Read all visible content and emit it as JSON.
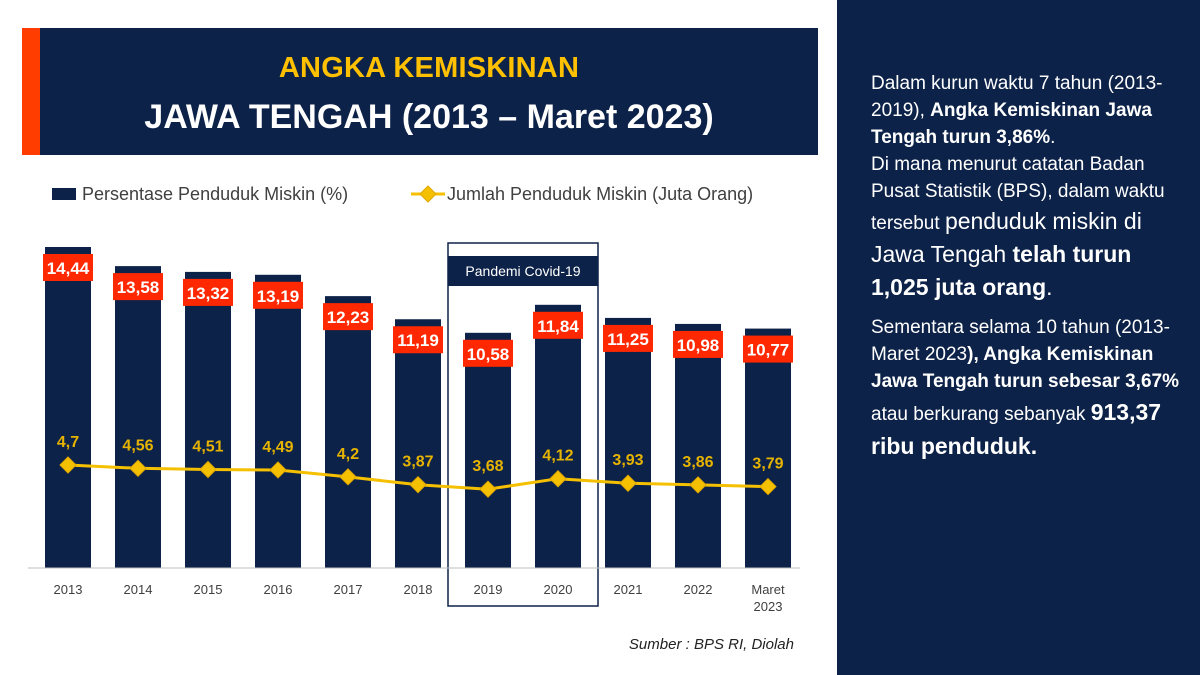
{
  "title": {
    "line1": "ANGKA KEMISKINAN",
    "line2": "JAWA TENGAH (2013 – Maret 2023)"
  },
  "colors": {
    "navy": "#0d2248",
    "accent_red": "#ff3d00",
    "title_yellow": "#ffc000",
    "line_yellow": "#f5c000",
    "label_red": "#ff2800"
  },
  "legend": {
    "bar_label": "Persentase Penduduk Miskin (%)",
    "line_label": "Jumlah Penduduk Miskin (Juta Orang)"
  },
  "chart_data": {
    "type": "bar",
    "categories": [
      "2013",
      "2014",
      "2015",
      "2016",
      "2017",
      "2018",
      "2019",
      "2020",
      "2021",
      "2022",
      "Maret 2023"
    ],
    "category_lines": [
      [
        "2013"
      ],
      [
        "2014"
      ],
      [
        "2015"
      ],
      [
        "2016"
      ],
      [
        "2017"
      ],
      [
        "2018"
      ],
      [
        "2019"
      ],
      [
        "2020"
      ],
      [
        "2021"
      ],
      [
        "2022"
      ],
      [
        "Maret",
        "2023"
      ]
    ],
    "series": [
      {
        "name": "Persentase Penduduk Miskin (%)",
        "type": "bar",
        "values": [
          14.44,
          13.58,
          13.32,
          13.19,
          12.23,
          11.19,
          10.58,
          11.84,
          11.25,
          10.98,
          10.77
        ],
        "labels": [
          "14,44",
          "13,58",
          "13,32",
          "13,19",
          "12,23",
          "11,19",
          "10,58",
          "11,84",
          "11,25",
          "10,98",
          "10,77"
        ]
      },
      {
        "name": "Jumlah Penduduk Miskin (Juta Orang)",
        "type": "line",
        "values": [
          4.7,
          4.56,
          4.51,
          4.49,
          4.2,
          3.87,
          3.68,
          4.12,
          3.93,
          3.86,
          3.79
        ],
        "labels": [
          "4,7",
          "4,56",
          "4,51",
          "4,49",
          "4,2",
          "3,87",
          "3,68",
          "4,12",
          "3,93",
          "3,86",
          "3,79"
        ]
      }
    ],
    "annotation": {
      "text": "Pandemi Covid-19",
      "categories": [
        "2019",
        "2020"
      ]
    },
    "legend_position": "top",
    "grid": false
  },
  "source": "Sumber : BPS RI, Diolah",
  "side_text": {
    "p1_a": "Dalam kurun waktu 7 tahun (2013-2019), ",
    "p1_b": "Angka Kemiskinan Jawa Tengah turun 3,86%",
    "p1_c": ".",
    "p2_a": "Di mana menurut catatan Badan Pusat Statistik (BPS), dalam waktu tersebut ",
    "p2_b": "penduduk miskin di Jawa Tengah ",
    "p2_c": "telah turun 1,025 juta orang",
    "p2_d": ".",
    "p3_a": "Sementara selama 10 tahun (2013-Maret 2023",
    "p3_b": "), Angka Kemiskinan Jawa Tengah turun sebesar 3,67%",
    "p3_c": " atau berkurang sebanyak ",
    "p3_d": "913,37 ribu penduduk."
  }
}
